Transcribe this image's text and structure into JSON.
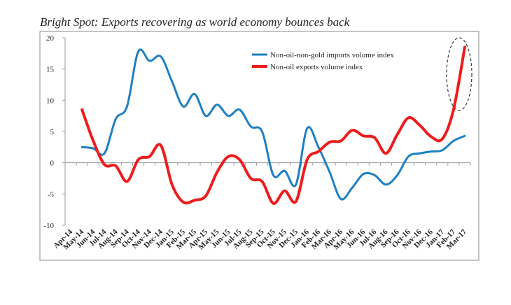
{
  "chart_data": {
    "type": "line",
    "title": "Bright Spot: Exports recovering as world economy bounces back",
    "categories": [
      "Apr-14",
      "May-14",
      "Jun-14",
      "Jul-14",
      "Aug-14",
      "Sep-14",
      "Oct-14",
      "Nov-14",
      "Dec-14",
      "Jan-15",
      "Feb-15",
      "Mar-15",
      "Apr-15",
      "May-15",
      "Jun-15",
      "Jul-15",
      "Aug-15",
      "Sep-15",
      "Oct-15",
      "Nov-15",
      "Dec-15",
      "Jan-16",
      "Feb-16",
      "Mar-16",
      "Apr-16",
      "May-16",
      "Jun-16",
      "Jul-16",
      "Aug-16",
      "Sep-16",
      "Oct-16",
      "Nov-16",
      "Dec-16",
      "Jan-17",
      "Feb-17",
      "Mar-17"
    ],
    "series": [
      {
        "name": "Non-oil-non-gold imports volume index",
        "color": "#1f7fc4",
        "values": [
          null,
          2.5,
          2.3,
          1.5,
          7.0,
          9.0,
          17.8,
          16.3,
          17.0,
          13.0,
          9.0,
          11.0,
          7.5,
          9.3,
          7.5,
          8.5,
          5.8,
          5.0,
          -2.0,
          -1.3,
          -3.5,
          5.5,
          2.5,
          -1.5,
          -5.8,
          -4.0,
          -1.8,
          -2.0,
          -3.5,
          -2.0,
          1.0,
          1.5,
          1.8,
          2.0,
          3.5,
          4.3
        ]
      },
      {
        "name": "Non-oil exports volume index",
        "color": "#ee1c1c",
        "values": [
          null,
          8.5,
          3.5,
          -0.3,
          -0.5,
          -3.0,
          0.5,
          1.0,
          2.8,
          -3.5,
          -6.3,
          -6.0,
          -5.3,
          -1.5,
          1.0,
          0.5,
          -2.5,
          -3.0,
          -6.5,
          -4.5,
          -6.2,
          0.5,
          1.8,
          3.3,
          3.5,
          5.2,
          4.3,
          4.0,
          1.5,
          4.5,
          7.2,
          6.0,
          4.2,
          3.8,
          8.5,
          18.5
        ]
      }
    ],
    "ylim": [
      -10,
      20
    ],
    "yticks": [
      -10,
      -5,
      0,
      5,
      10,
      15,
      20
    ],
    "legend": "upper right"
  }
}
